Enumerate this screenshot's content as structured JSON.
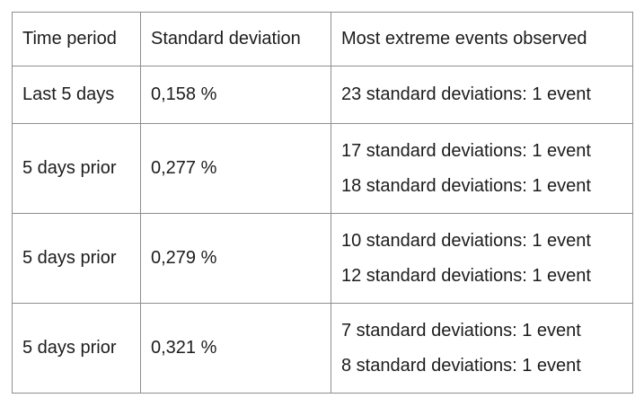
{
  "table": {
    "headers": [
      "Time period",
      "Standard deviation",
      "Most extreme events observed"
    ],
    "rows": [
      {
        "period": "Last 5 days",
        "std_dev": "0,158 %",
        "events": [
          "23 standard deviations: 1 event"
        ]
      },
      {
        "period": "5 days prior",
        "std_dev": "0,277 %",
        "events": [
          "17 standard deviations: 1 event",
          "18 standard deviations: 1 event"
        ]
      },
      {
        "period": "5 days prior",
        "std_dev": "0,279 %",
        "events": [
          "10 standard deviations: 1 event",
          "12 standard deviations: 1 event"
        ]
      },
      {
        "period": "5 days prior",
        "std_dev": "0,321 %",
        "events": [
          "7 standard deviations: 1 event",
          "8 standard deviations: 1 event"
        ]
      }
    ]
  }
}
